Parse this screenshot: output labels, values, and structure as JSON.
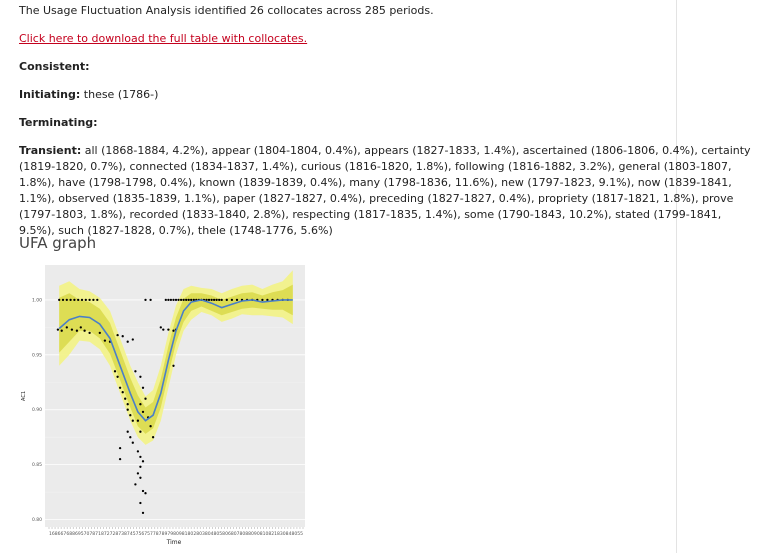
{
  "intro": "The Usage Fluctuation Analysis identified 26 collocates across 285 periods.",
  "download_link": "Click here to download the full table with collocates.",
  "consistent": {
    "label": "Consistent:",
    "value": ""
  },
  "initiating": {
    "label": "Initiating:",
    "value": " these (1786-)"
  },
  "terminating": {
    "label": "Terminating:",
    "value": ""
  },
  "transient": {
    "label": "Transient:",
    "value": " all (1868-1884, 4.2%), appear (1804-1804, 0.4%), appears (1827-1833, 1.4%), ascertained (1806-1806, 0.4%), certainty (1819-1820, 0.7%), connected (1834-1837, 1.4%), curious (1816-1820, 1.8%), following (1816-1882, 3.2%), general (1803-1807, 1.8%), have (1798-1798, 0.4%), known (1839-1839, 0.4%), many (1798-1836, 11.6%), new (1797-1823, 9.1%), now (1839-1841, 1.1%), observed (1835-1839, 1.1%), paper (1827-1827, 0.4%), preceding (1827-1827, 0.4%), propriety (1817-1821, 1.8%), prove (1797-1803, 1.8%), recorded (1833-1840, 2.8%), respecting (1817-1835, 1.4%), some (1790-1843, 10.2%), stated (1799-1841, 9.5%), such (1827-1828, 0.7%), thele (1748-1776, 5.6%)"
  },
  "graph_heading": "UFA graph",
  "chart_data": {
    "type": "scatter",
    "xlabel": "Time",
    "ylabel": "AC1",
    "yticks": [
      "0.80",
      "0.85",
      "0.90",
      "0.95",
      "1.00"
    ],
    "ylim": [
      0.795,
      1.03
    ],
    "xlim": [
      0,
      100
    ],
    "xticks_text": "1686676886957078718727287387457567577878979809818028038048058068078088090810821830848055",
    "grid": true,
    "colors": {
      "band_outer": "#f2f28a",
      "band_inner": "#d9d94a",
      "smooth": "#4a7fc8",
      "points": "#000000",
      "panel": "#ebebeb"
    },
    "smooth": [
      [
        4,
        0.974
      ],
      [
        8,
        0.982
      ],
      [
        12,
        0.985
      ],
      [
        16,
        0.984
      ],
      [
        20,
        0.978
      ],
      [
        24,
        0.965
      ],
      [
        28,
        0.94
      ],
      [
        32,
        0.915
      ],
      [
        35,
        0.898
      ],
      [
        38,
        0.89
      ],
      [
        41,
        0.895
      ],
      [
        44,
        0.915
      ],
      [
        47,
        0.945
      ],
      [
        50,
        0.972
      ],
      [
        53,
        0.99
      ],
      [
        56,
        0.998
      ],
      [
        60,
        1.0
      ],
      [
        64,
        0.997
      ],
      [
        68,
        0.993
      ],
      [
        72,
        0.996
      ],
      [
        76,
        0.999
      ],
      [
        80,
        1.0
      ],
      [
        84,
        0.998
      ],
      [
        88,
        0.999
      ],
      [
        92,
        1.0
      ],
      [
        96,
        1.0
      ]
    ],
    "band_outer_upper": [
      [
        4,
        1.013
      ],
      [
        8,
        1.017
      ],
      [
        12,
        1.01
      ],
      [
        16,
        1.008
      ],
      [
        20,
        1.002
      ],
      [
        24,
        0.99
      ],
      [
        28,
        0.965
      ],
      [
        32,
        0.94
      ],
      [
        35,
        0.925
      ],
      [
        38,
        0.912
      ],
      [
        41,
        0.918
      ],
      [
        44,
        0.94
      ],
      [
        47,
        0.97
      ],
      [
        50,
        0.995
      ],
      [
        53,
        1.01
      ],
      [
        56,
        1.013
      ],
      [
        60,
        1.011
      ],
      [
        64,
        1.01
      ],
      [
        68,
        1.006
      ],
      [
        72,
        1.01
      ],
      [
        76,
        1.013
      ],
      [
        80,
        1.014
      ],
      [
        84,
        1.01
      ],
      [
        88,
        1.014
      ],
      [
        92,
        1.017
      ],
      [
        96,
        1.027
      ]
    ],
    "band_outer_lower": [
      [
        4,
        0.94
      ],
      [
        8,
        0.95
      ],
      [
        12,
        0.963
      ],
      [
        16,
        0.962
      ],
      [
        20,
        0.955
      ],
      [
        24,
        0.94
      ],
      [
        28,
        0.915
      ],
      [
        32,
        0.89
      ],
      [
        35,
        0.875
      ],
      [
        38,
        0.868
      ],
      [
        41,
        0.872
      ],
      [
        44,
        0.89
      ],
      [
        47,
        0.92
      ],
      [
        50,
        0.95
      ],
      [
        53,
        0.972
      ],
      [
        56,
        0.982
      ],
      [
        60,
        0.989
      ],
      [
        64,
        0.986
      ],
      [
        68,
        0.98
      ],
      [
        72,
        0.983
      ],
      [
        76,
        0.987
      ],
      [
        80,
        0.986
      ],
      [
        84,
        0.986
      ],
      [
        88,
        0.985
      ],
      [
        92,
        0.984
      ],
      [
        96,
        0.978
      ]
    ],
    "band_inner_upper": [
      [
        4,
        1.002
      ],
      [
        8,
        1.006
      ],
      [
        12,
        1.0
      ],
      [
        16,
        0.998
      ],
      [
        20,
        0.992
      ],
      [
        24,
        0.979
      ],
      [
        28,
        0.954
      ],
      [
        32,
        0.929
      ],
      [
        35,
        0.913
      ],
      [
        38,
        0.902
      ],
      [
        41,
        0.907
      ],
      [
        44,
        0.928
      ],
      [
        47,
        0.958
      ],
      [
        50,
        0.984
      ],
      [
        53,
        1.001
      ],
      [
        56,
        1.006
      ],
      [
        60,
        1.006
      ],
      [
        64,
        1.004
      ],
      [
        68,
        1.0
      ],
      [
        72,
        1.003
      ],
      [
        76,
        1.006
      ],
      [
        80,
        1.007
      ],
      [
        84,
        1.004
      ],
      [
        88,
        1.007
      ],
      [
        92,
        1.009
      ],
      [
        96,
        1.014
      ]
    ],
    "band_inner_lower": [
      [
        4,
        0.952
      ],
      [
        8,
        0.962
      ],
      [
        12,
        0.972
      ],
      [
        16,
        0.972
      ],
      [
        20,
        0.965
      ],
      [
        24,
        0.951
      ],
      [
        28,
        0.927
      ],
      [
        32,
        0.902
      ],
      [
        35,
        0.885
      ],
      [
        38,
        0.878
      ],
      [
        41,
        0.883
      ],
      [
        44,
        0.902
      ],
      [
        47,
        0.932
      ],
      [
        50,
        0.961
      ],
      [
        53,
        0.98
      ],
      [
        56,
        0.99
      ],
      [
        60,
        0.994
      ],
      [
        64,
        0.99
      ],
      [
        68,
        0.986
      ],
      [
        72,
        0.989
      ],
      [
        76,
        0.992
      ],
      [
        80,
        0.993
      ],
      [
        84,
        0.992
      ],
      [
        88,
        0.991
      ],
      [
        92,
        0.991
      ],
      [
        96,
        0.986
      ]
    ],
    "points": [
      [
        4,
        1.0
      ],
      [
        5.5,
        1.0
      ],
      [
        7,
        1.0
      ],
      [
        8.5,
        1.0
      ],
      [
        10,
        1.0
      ],
      [
        11.5,
        1.0
      ],
      [
        13,
        1.0
      ],
      [
        14.5,
        1.0
      ],
      [
        16,
        1.0
      ],
      [
        17.5,
        1.0
      ],
      [
        19,
        1.0
      ],
      [
        3.5,
        0.973
      ],
      [
        5,
        0.972
      ],
      [
        7,
        0.975
      ],
      [
        9,
        0.973
      ],
      [
        11,
        0.972
      ],
      [
        12.5,
        0.975
      ],
      [
        14,
        0.972
      ],
      [
        16,
        0.97
      ],
      [
        20,
        0.97
      ],
      [
        22,
        0.963
      ],
      [
        24,
        0.962
      ],
      [
        27,
        0.968
      ],
      [
        29,
        0.967
      ],
      [
        31,
        0.962
      ],
      [
        33,
        0.964
      ],
      [
        26,
        0.935
      ],
      [
        27,
        0.93
      ],
      [
        28,
        0.92
      ],
      [
        29,
        0.916
      ],
      [
        30,
        0.91
      ],
      [
        31,
        0.905
      ],
      [
        31,
        0.9
      ],
      [
        32,
        0.895
      ],
      [
        33,
        0.89
      ],
      [
        31,
        0.88
      ],
      [
        32,
        0.875
      ],
      [
        33,
        0.87
      ],
      [
        28,
        0.865
      ],
      [
        28,
        0.855
      ],
      [
        34,
        0.935
      ],
      [
        36,
        0.93
      ],
      [
        37,
        0.92
      ],
      [
        38,
        0.91
      ],
      [
        36,
        0.905
      ],
      [
        37,
        0.898
      ],
      [
        35,
        0.89
      ],
      [
        36,
        0.88
      ],
      [
        39,
        0.893
      ],
      [
        40,
        0.885
      ],
      [
        41,
        0.875
      ],
      [
        35,
        0.862
      ],
      [
        36,
        0.857
      ],
      [
        37,
        0.853
      ],
      [
        36,
        0.848
      ],
      [
        35,
        0.842
      ],
      [
        36,
        0.838
      ],
      [
        34,
        0.832
      ],
      [
        37,
        0.826
      ],
      [
        38,
        0.824
      ],
      [
        36,
        0.815
      ],
      [
        37,
        0.806
      ],
      [
        38,
        1.0
      ],
      [
        40,
        1.0
      ],
      [
        44,
        0.975
      ],
      [
        45,
        0.973
      ],
      [
        47,
        0.973
      ],
      [
        49,
        0.972
      ],
      [
        50,
        0.973
      ],
      [
        49,
        0.94
      ],
      [
        46,
        1.0
      ],
      [
        47,
        1.0
      ],
      [
        48,
        1.0
      ],
      [
        49,
        1.0
      ],
      [
        50,
        1.0
      ],
      [
        51,
        1.0
      ],
      [
        52,
        1.0
      ],
      [
        53,
        1.0
      ],
      [
        54,
        1.0
      ],
      [
        55,
        1.0
      ],
      [
        56,
        1.0
      ],
      [
        57,
        1.0
      ],
      [
        58,
        1.0
      ],
      [
        59,
        1.0
      ],
      [
        60,
        1.0
      ],
      [
        61,
        1.0
      ],
      [
        62,
        1.0
      ],
      [
        63,
        1.0
      ],
      [
        64,
        1.0
      ],
      [
        65,
        1.0
      ],
      [
        66,
        1.0
      ],
      [
        67,
        1.0
      ],
      [
        68,
        1.0
      ],
      [
        70,
        1.0
      ],
      [
        72,
        1.0
      ],
      [
        74,
        1.0
      ],
      [
        76,
        1.0
      ],
      [
        78,
        1.0
      ],
      [
        80,
        1.0
      ],
      [
        82,
        1.0
      ],
      [
        84,
        1.0
      ],
      [
        86,
        1.0
      ],
      [
        88,
        1.0
      ],
      [
        90,
        1.0
      ],
      [
        92,
        1.0
      ],
      [
        94,
        1.0
      ]
    ]
  }
}
